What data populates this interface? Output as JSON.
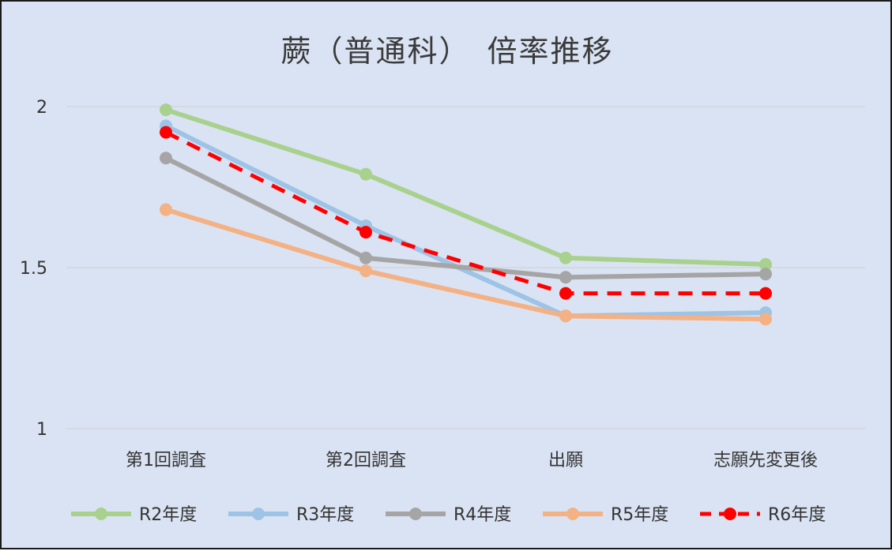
{
  "chart_data": {
    "type": "line",
    "title": "蕨（普通科）　倍率推移",
    "categories": [
      "第1回調査",
      "第2回調査",
      "出願",
      "志願先変更後"
    ],
    "ylim": [
      1,
      2
    ],
    "yticks": [
      {
        "value": 1,
        "label": "1"
      },
      {
        "value": 1.5,
        "label": "1.5"
      },
      {
        "value": 2,
        "label": "2"
      }
    ],
    "grid": true,
    "legend_position": "bottom",
    "series": [
      {
        "name": "R2年度",
        "color": "#a9d18e",
        "dashed": false,
        "values": [
          1.99,
          1.79,
          1.53,
          1.51
        ]
      },
      {
        "name": "R3年度",
        "color": "#9dc3e6",
        "dashed": false,
        "values": [
          1.94,
          1.63,
          1.35,
          1.36
        ]
      },
      {
        "name": "R4年度",
        "color": "#a5a5a5",
        "dashed": false,
        "values": [
          1.84,
          1.53,
          1.47,
          1.48
        ]
      },
      {
        "name": "R5年度",
        "color": "#f4b183",
        "dashed": false,
        "values": [
          1.68,
          1.49,
          1.35,
          1.34
        ]
      },
      {
        "name": "R6年度",
        "color": "#ff0000",
        "dashed": true,
        "values": [
          1.92,
          1.61,
          1.42,
          1.42
        ]
      }
    ]
  }
}
